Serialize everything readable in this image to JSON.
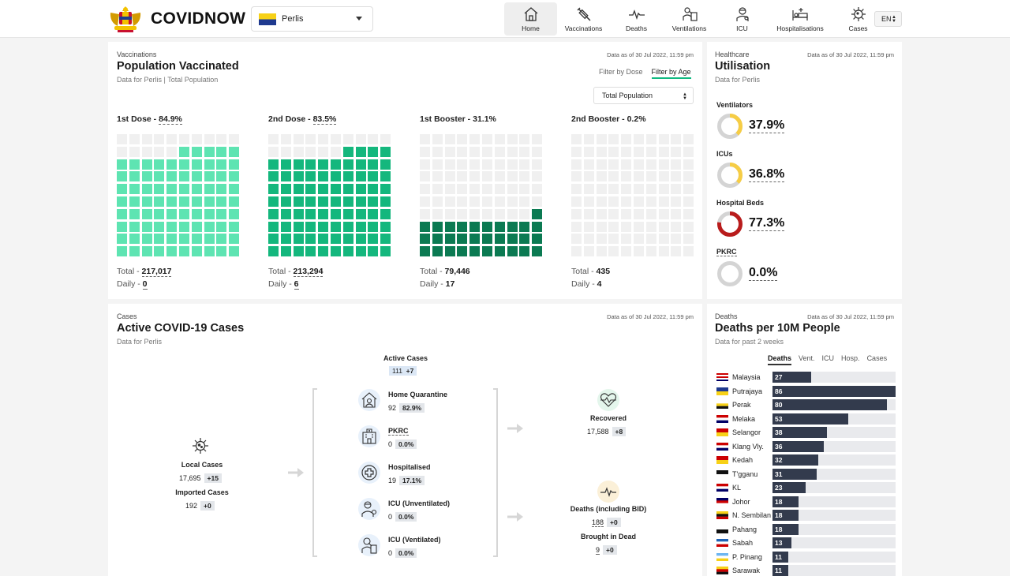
{
  "app": {
    "brand": "COVIDNOW",
    "logo_icon": "coat-of-arms-logo",
    "language": "EN"
  },
  "state_select": {
    "value": "Perlis"
  },
  "nav": [
    {
      "label": "Home",
      "icon": "home-icon",
      "active": true
    },
    {
      "label": "Vaccinations",
      "icon": "syringe-icon",
      "active": false
    },
    {
      "label": "Deaths",
      "icon": "pulse-icon",
      "active": false
    },
    {
      "label": "Ventilations",
      "icon": "ventilator-icon",
      "active": false
    },
    {
      "label": "ICU",
      "icon": "icu-doctor-icon",
      "active": false
    },
    {
      "label": "Hospitalisations",
      "icon": "hospital-bed-icon",
      "active": false
    },
    {
      "label": "Cases",
      "icon": "virus-icon",
      "active": false
    }
  ],
  "vaccinated": {
    "kicker": "Vaccinations",
    "title": "Population Vaccinated",
    "subtitle": "Data for Perlis | Total Population",
    "as_of": "Data as of 30 Jul 2022, 11:59 pm",
    "filters": [
      "Filter by Dose",
      "Filter by Age"
    ],
    "population_select": "Total Population",
    "total_label": "Total - ",
    "daily_label": "Daily - ",
    "doses": [
      {
        "label": "1st Dose - ",
        "pct": "84.9%",
        "percent": 84.9,
        "total": "217,017",
        "daily": "0",
        "color": "#5ee4b2"
      },
      {
        "label": "2nd Dose - ",
        "pct": "83.5%",
        "percent": 83.5,
        "total": "213,294",
        "daily": "6",
        "color": "#14b77d"
      },
      {
        "label": "1st Booster - ",
        "pct": "31.1%",
        "percent": 31.1,
        "total": "79,446",
        "daily": "17",
        "color": "#0b7a52"
      },
      {
        "label": "2nd Booster - ",
        "pct": "0.2%",
        "percent": 0.2,
        "total": "435",
        "daily": "4",
        "color": "#0b7a52"
      }
    ]
  },
  "utilisation": {
    "kicker": "Healthcare",
    "title": "Utilisation",
    "subtitle": "Data for Perlis",
    "as_of": "Data as of 30 Jul 2022, 11:59 pm",
    "items": [
      {
        "label": "Ventilators",
        "value": "37.9%",
        "percent": 37.9,
        "color": "#f6cd45"
      },
      {
        "label": "ICUs",
        "value": "36.8%",
        "percent": 36.8,
        "color": "#f6cd45"
      },
      {
        "label": "Hospital Beds",
        "value": "77.3%",
        "percent": 77.3,
        "color": "#b91c1c"
      },
      {
        "label": "PKRC",
        "value": "0.0%",
        "percent": 0.0,
        "color": "#d4d4d4"
      }
    ]
  },
  "cases": {
    "kicker": "Cases",
    "title": "Active COVID-19 Cases",
    "subtitle": "Data for Perlis",
    "as_of": "Data as of 30 Jul 2022, 11:59 pm",
    "active": {
      "label": "Active Cases",
      "value": "111",
      "delta": "+7"
    },
    "local": {
      "label": "Local Cases",
      "value": "17,695",
      "delta": "+15"
    },
    "imported": {
      "label": "Imported Cases",
      "value": "192",
      "delta": "+0"
    },
    "breakdown": [
      {
        "label": "Home Quarantine",
        "value": "92",
        "pct": "82.9%",
        "icon": "home-quarantine-icon"
      },
      {
        "label": "PKRC",
        "value": "0",
        "pct": "0.0%",
        "icon": "pkrc-building-icon"
      },
      {
        "label": "Hospitalised",
        "value": "19",
        "pct": "17.1%",
        "icon": "medical-cross-icon"
      },
      {
        "label": "ICU (Unventilated)",
        "value": "0",
        "pct": "0.0%",
        "icon": "icu-unventilated-icon"
      },
      {
        "label": "ICU (Ventilated)",
        "value": "0",
        "pct": "0.0%",
        "icon": "icu-ventilated-icon"
      }
    ],
    "recovered": {
      "label": "Recovered",
      "value": "17,588",
      "delta": "+8"
    },
    "deaths": {
      "label": "Deaths (including BID)",
      "value": "188",
      "delta": "+0"
    },
    "bid": {
      "label": "Brought in Dead",
      "value": "9",
      "delta": "+0"
    }
  },
  "deaths10m": {
    "kicker": "Deaths",
    "title": "Deaths per 10M People",
    "subtitle": "Data for past 2 weeks",
    "as_of": "Data as of 30 Jul 2022, 11:59 pm",
    "tabs": [
      "Deaths",
      "Vent.",
      "ICU",
      "Hosp.",
      "Cases"
    ],
    "chart_data": {
      "type": "bar",
      "categories": [
        "Malaysia",
        "Putrajaya",
        "Perak",
        "Melaka",
        "Selangor",
        "Klang Vly.",
        "Kedah",
        "T'gganu",
        "KL",
        "Johor",
        "N. Sembilan",
        "Pahang",
        "Sabah",
        "P. Pinang",
        "Sarawak"
      ],
      "values": [
        27,
        86,
        80,
        53,
        38,
        36,
        32,
        31,
        23,
        18,
        18,
        18,
        13,
        11,
        11
      ],
      "max": 86
    }
  }
}
